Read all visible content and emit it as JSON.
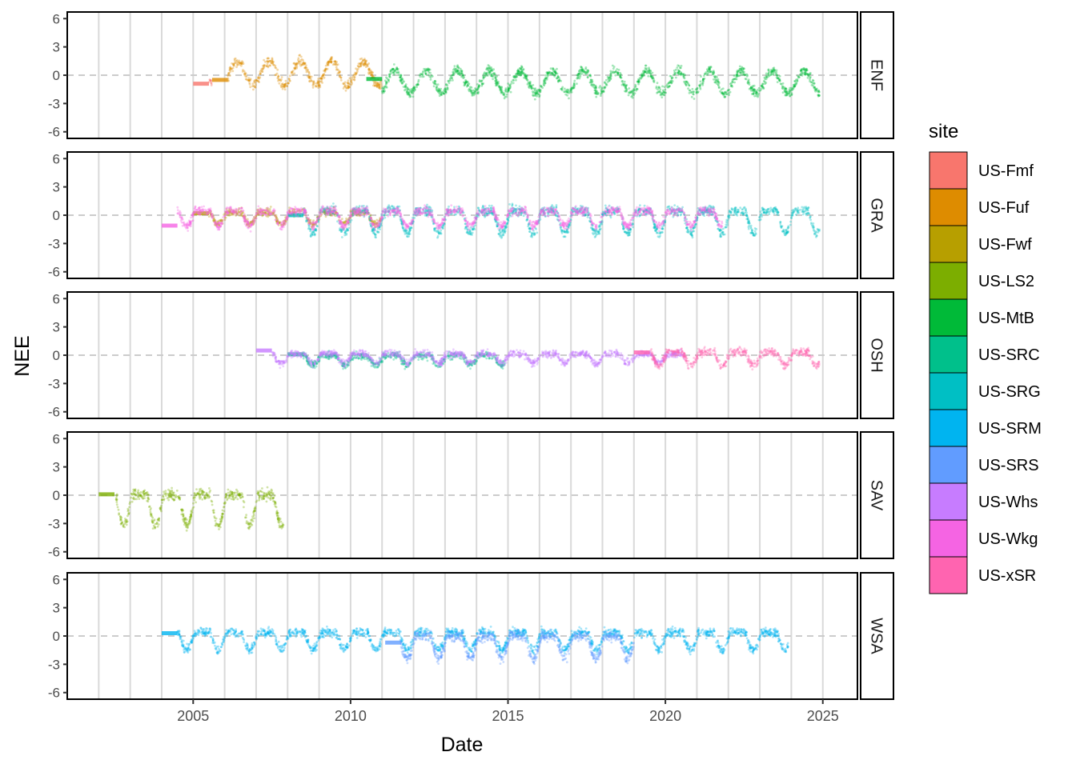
{
  "chart_data": {
    "type": "scatter",
    "xlabel": "Date",
    "ylabel": "NEE",
    "x_ticks": [
      2005,
      2010,
      2015,
      2020,
      2025
    ],
    "xlim": [
      2001,
      2026.1
    ],
    "y_ticks": [
      6,
      3,
      0,
      -3,
      -6
    ],
    "ylim": [
      -6.7,
      6.7
    ],
    "reference_line": 0,
    "grid": "vertical lines each year",
    "legend": {
      "title": "site",
      "placement": "right",
      "entries": [
        {
          "name": "US-Fmf",
          "color": "#F8766D"
        },
        {
          "name": "US-Fuf",
          "color": "#DE8C00"
        },
        {
          "name": "US-Fwf",
          "color": "#B79F00"
        },
        {
          "name": "US-LS2",
          "color": "#7CAE00"
        },
        {
          "name": "US-MtB",
          "color": "#00BA38"
        },
        {
          "name": "US-SRC",
          "color": "#00C08B"
        },
        {
          "name": "US-SRG",
          "color": "#00BFC4"
        },
        {
          "name": "US-SRM",
          "color": "#00B4F0"
        },
        {
          "name": "US-SRS",
          "color": "#619CFF"
        },
        {
          "name": "US-Whs",
          "color": "#C77CFF"
        },
        {
          "name": "US-Wkg",
          "color": "#F564E3"
        },
        {
          "name": "US-xSR",
          "color": "#FF64B0"
        }
      ]
    },
    "panels": [
      {
        "label": "ENF",
        "series": [
          {
            "site": "US-Fmf",
            "color": "#F8766D",
            "range": [
              2005.0,
              2005.6
            ],
            "gap_fill": -0.9,
            "amplitude": 0.3,
            "baseline": -0.9
          },
          {
            "site": "US-Fuf",
            "color": "#DE8C00",
            "range": [
              2005.6,
              2011.0
            ],
            "gap_fill": -0.5,
            "amplitude": 1.3,
            "baseline": 0.2
          },
          {
            "site": "US-MtB",
            "color": "#00BA38",
            "range": [
              2010.5,
              2024.9
            ],
            "gap_fill": -0.4,
            "amplitude": 1.2,
            "baseline": -0.7
          }
        ]
      },
      {
        "label": "GRA",
        "series": [
          {
            "site": "US-Fwf",
            "color": "#B79F00",
            "range": [
              2005.0,
              2011.0
            ],
            "gap_fill": 0.2,
            "amplitude": 0.6,
            "baseline": 0.1
          },
          {
            "site": "US-SRG",
            "color": "#00BFC4",
            "range": [
              2008.0,
              2024.9
            ],
            "gap_fill": 0.0,
            "amplitude": 1.2,
            "baseline": 0.1
          },
          {
            "site": "US-Wkg",
            "color": "#F564E3",
            "range": [
              2004.0,
              2021.8
            ],
            "gap_fill": -1.1,
            "amplitude": 0.8,
            "baseline": 0.2
          }
        ]
      },
      {
        "label": "OSH",
        "series": [
          {
            "site": "US-SRC",
            "color": "#00C08B",
            "range": [
              2008.0,
              2014.9
            ],
            "gap_fill": 0.1,
            "amplitude": 0.5,
            "baseline": -0.2
          },
          {
            "site": "US-Whs",
            "color": "#C77CFF",
            "range": [
              2007.0,
              2020.6
            ],
            "gap_fill": 0.5,
            "amplitude": 0.5,
            "baseline": 0.0
          },
          {
            "site": "US-xSR",
            "color": "#FF64B0",
            "range": [
              2019.0,
              2024.9
            ],
            "gap_fill": 0.3,
            "amplitude": 0.7,
            "baseline": 0.1
          }
        ]
      },
      {
        "label": "SAV",
        "series": [
          {
            "site": "US-LS2",
            "color": "#7CAE00",
            "range": [
              2002.0,
              2007.9
            ],
            "gap_fill": 0.1,
            "amplitude": 1.6,
            "baseline": -0.4
          }
        ]
      },
      {
        "label": "WSA",
        "series": [
          {
            "site": "US-SRM",
            "color": "#00B4F0",
            "range": [
              2004.0,
              2023.9
            ],
            "gap_fill": 0.3,
            "amplitude": 0.9,
            "baseline": 0.1
          },
          {
            "site": "US-SRS",
            "color": "#619CFF",
            "range": [
              2011.1,
              2019.0
            ],
            "gap_fill": -0.7,
            "amplitude": 1.2,
            "baseline": -0.4
          }
        ]
      }
    ]
  }
}
